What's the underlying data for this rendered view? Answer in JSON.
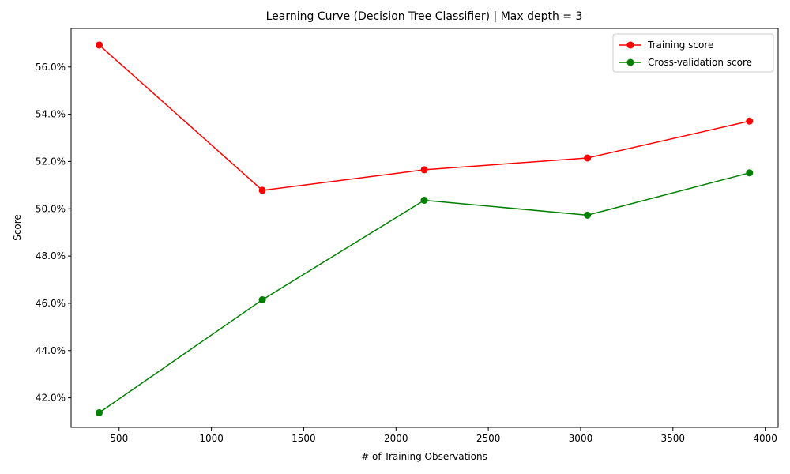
{
  "chart_data": {
    "type": "line",
    "title": "Learning Curve (Decision Tree Classifier) | Max depth = 3",
    "xlabel": "# of Training Observations",
    "ylabel": "Score",
    "xlim": [
      240,
      4070
    ],
    "ylim": [
      0.4075,
      0.5763
    ],
    "xticks": [
      500,
      1000,
      1500,
      2000,
      2500,
      3000,
      3500,
      4000
    ],
    "yticks": [
      0.42,
      0.44,
      0.46,
      0.48,
      0.5,
      0.52,
      0.54,
      0.56
    ],
    "ytick_labels": [
      "42.0%",
      "44.0%",
      "46.0%",
      "48.0%",
      "50.0%",
      "52.0%",
      "54.0%",
      "56.0%"
    ],
    "grid": false,
    "legend_position": "top-right",
    "x": [
      392,
      1276,
      2153,
      3037,
      3915
    ],
    "series": [
      {
        "name": "Training score",
        "color": "#ff0000",
        "values": [
          0.5693,
          0.5078,
          0.5165,
          0.5215,
          0.5371
        ]
      },
      {
        "name": "Cross-validation score",
        "color": "#008000",
        "values": [
          0.4137,
          0.4615,
          0.5036,
          0.4973,
          0.5152
        ]
      }
    ]
  }
}
